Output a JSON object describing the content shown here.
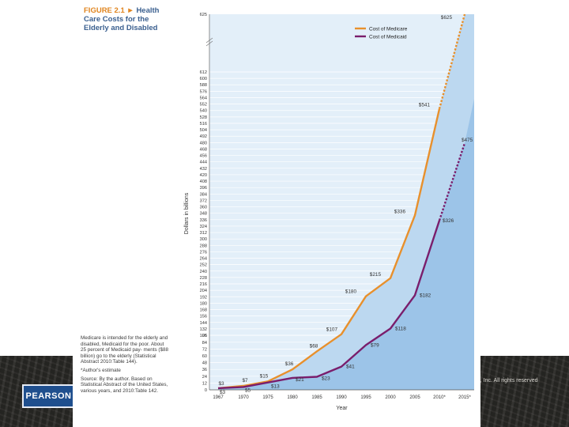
{
  "slide": {
    "publisher": "PEARSON",
    "copyright": "on, Inc.  All rights reserved"
  },
  "figure": {
    "label": "FIGURE 2.1",
    "title": "Health Care Costs for the Elderly and Disabled",
    "notes": [
      "Medicare is intended for the elderly and disabled, Medicaid for the poor. About 25 percent of Medicaid pay- ments ($88 billion) go to the elderly (Statistical Abstract 2010:Table 144).",
      "*Author's estimate",
      "Source: By the author. Based on Statistical Abstract of the United States, various years, and 2010:Table 142."
    ]
  },
  "chart_data": {
    "type": "line",
    "title": "FIGURE 2.1 Health Care Costs for the Elderly and Disabled",
    "xlabel": "Year",
    "ylabel": "Dollars in billions",
    "ylim": [
      0,
      625
    ],
    "y_axis_break": "between 612 and 625",
    "categories": [
      "1967",
      "1970",
      "1975",
      "1980",
      "1985",
      "1990",
      "1995",
      "2000",
      "2005",
      "2010*",
      "2015*"
    ],
    "yticks_lower": [
      "0",
      "12",
      "24",
      "36",
      "48",
      "60",
      "72",
      "84",
      "96"
    ],
    "yticks_upper": [
      "105",
      "132",
      "144",
      "156",
      "168",
      "180",
      "192",
      "204",
      "216",
      "228",
      "240",
      "252",
      "264",
      "276",
      "288",
      "300",
      "312",
      "324",
      "336",
      "348",
      "360",
      "372",
      "384",
      "396",
      "408",
      "420",
      "432",
      "444",
      "456",
      "468",
      "480",
      "492",
      "504",
      "516",
      "528",
      "540",
      "552",
      "564",
      "576",
      "588",
      "600",
      "612"
    ],
    "ytick_top": "625",
    "legend": {
      "position": "top-right",
      "entries": [
        "Cost of Medicare",
        "Cost of Medicaid"
      ]
    },
    "series": [
      {
        "name": "Cost of Medicare",
        "color": "#e8902c",
        "values": [
          3,
          7,
          15,
          36,
          68,
          107,
          180,
          215,
          336,
          541,
          625
        ],
        "labels": [
          "$3",
          "$7",
          "$15",
          "$36",
          "$68",
          "$107",
          "$180",
          "$215",
          "$336",
          "$541",
          "$625"
        ],
        "projected_from_index": 9
      },
      {
        "name": "Cost of Medicaid",
        "color": "#7a1e6c",
        "values": [
          3,
          5,
          13,
          21,
          23,
          41,
          79,
          118,
          182,
          326,
          475
        ],
        "labels": [
          "$3",
          "$5",
          "$13",
          "$21",
          "$23",
          "$41",
          "$79",
          "$118",
          "$182",
          "$326",
          "$475"
        ],
        "projected_from_index": 9
      }
    ],
    "colors": {
      "fill_medicare": "#bcd8f0",
      "fill_medicaid": "#9cc4e8",
      "background": "#e3eff9"
    }
  }
}
